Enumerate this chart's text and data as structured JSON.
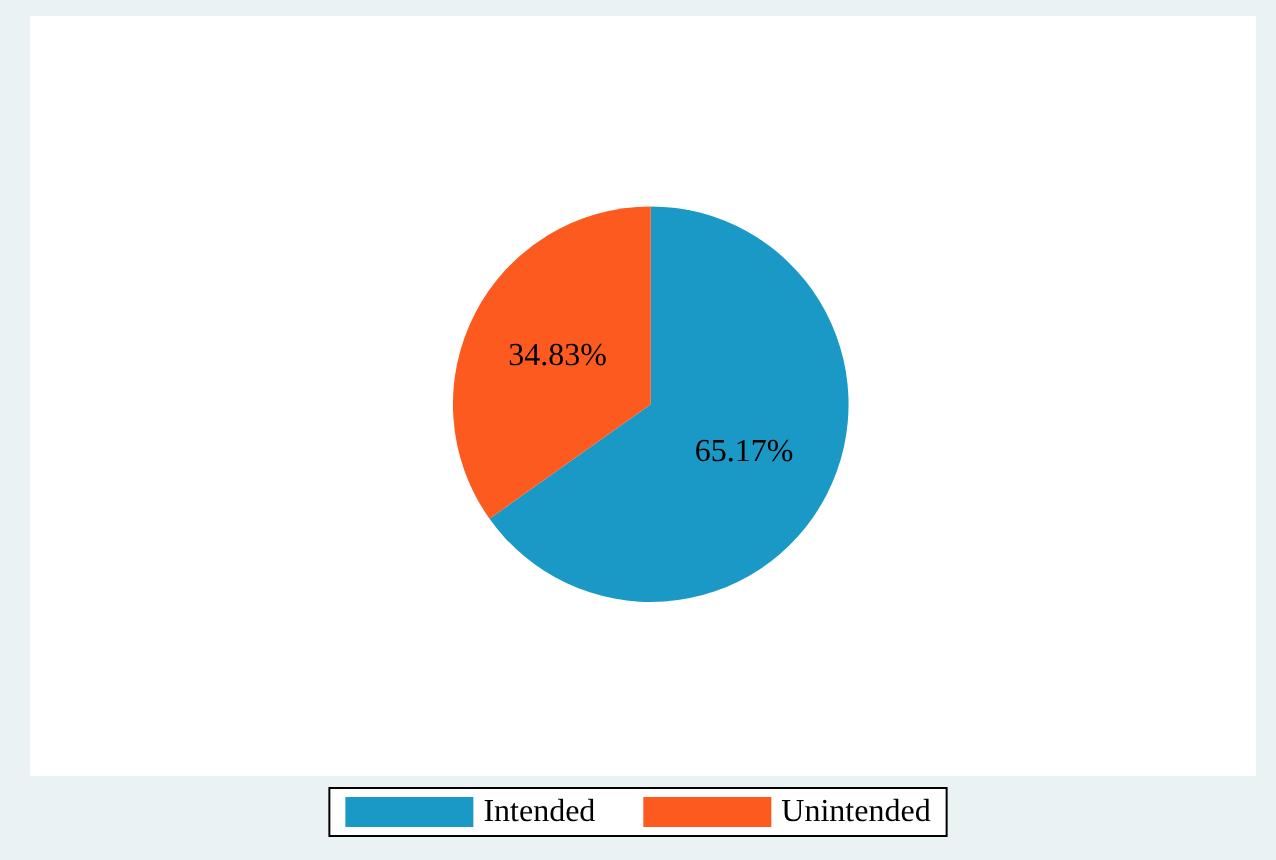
{
  "chart_data": {
    "type": "pie",
    "categories": [
      "Intended",
      "Unintended"
    ],
    "values": [
      65.17,
      34.83
    ],
    "colors": [
      "#1a99c6",
      "#fc5a1e"
    ],
    "value_labels": [
      "65.17%",
      "34.83%"
    ],
    "legend": "bottom"
  }
}
